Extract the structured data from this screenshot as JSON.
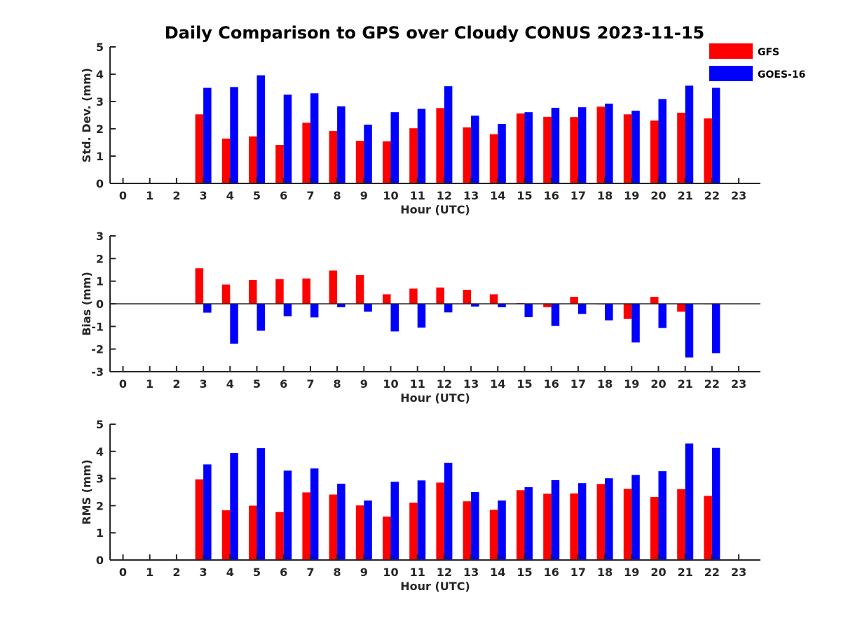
{
  "title": "Daily Comparison to GPS over Cloudy CONUS 2023-11-15",
  "legend": {
    "placement": "top-right",
    "items": [
      {
        "name": "GFS",
        "color": "#ff0000"
      },
      {
        "name": "GOES-16",
        "color": "#0000ff"
      }
    ]
  },
  "chart_data": [
    {
      "type": "bar",
      "xlabel": "Hour (UTC)",
      "ylabel": "Std. Dev. (mm)",
      "ylim": [
        0,
        5
      ],
      "yticks": [
        0,
        1,
        2,
        3,
        4,
        5
      ],
      "categories": [
        "0",
        "1",
        "2",
        "3",
        "4",
        "5",
        "6",
        "7",
        "8",
        "9",
        "10",
        "11",
        "12",
        "13",
        "14",
        "15",
        "16",
        "17",
        "18",
        "19",
        "20",
        "21",
        "22",
        "23"
      ],
      "grid": false,
      "series": [
        {
          "name": "GFS",
          "color": "#ff0000",
          "values": [
            null,
            null,
            null,
            2.53,
            1.64,
            1.72,
            1.41,
            2.22,
            1.92,
            1.56,
            1.54,
            2.02,
            2.76,
            2.05,
            1.8,
            2.56,
            2.44,
            2.43,
            2.81,
            2.53,
            2.3,
            2.59,
            2.38,
            null
          ]
        },
        {
          "name": "GOES-16",
          "color": "#0000ff",
          "values": [
            null,
            null,
            null,
            3.5,
            3.53,
            3.96,
            3.25,
            3.3,
            2.82,
            2.15,
            2.61,
            2.73,
            3.56,
            2.48,
            2.18,
            2.61,
            2.77,
            2.79,
            2.92,
            2.66,
            3.09,
            3.58,
            3.5,
            null
          ]
        }
      ]
    },
    {
      "type": "bar",
      "xlabel": "Hour (UTC)",
      "ylabel": "Bias (mm)",
      "ylim": [
        -3,
        3
      ],
      "yticks": [
        -3,
        -2,
        -1,
        0,
        1,
        2,
        3
      ],
      "categories": [
        "0",
        "1",
        "2",
        "3",
        "4",
        "5",
        "6",
        "7",
        "8",
        "9",
        "10",
        "11",
        "12",
        "13",
        "14",
        "15",
        "16",
        "17",
        "18",
        "19",
        "20",
        "21",
        "22",
        "23"
      ],
      "grid": false,
      "zero_line": true,
      "series": [
        {
          "name": "GFS",
          "color": "#ff0000",
          "values": [
            null,
            null,
            null,
            1.57,
            0.85,
            1.05,
            1.09,
            1.12,
            1.47,
            1.27,
            0.42,
            0.67,
            0.72,
            0.62,
            0.42,
            0.03,
            -0.15,
            0.31,
            -0.03,
            -0.67,
            0.31,
            -0.35,
            0.0,
            null
          ]
        },
        {
          "name": "GOES-16",
          "color": "#0000ff",
          "values": [
            null,
            null,
            null,
            -0.39,
            -1.76,
            -1.19,
            -0.55,
            -0.6,
            -0.15,
            -0.35,
            -1.22,
            -1.05,
            -0.38,
            -0.12,
            -0.15,
            -0.59,
            -0.98,
            -0.45,
            -0.73,
            -1.71,
            -1.07,
            -2.37,
            -2.18,
            null
          ]
        }
      ]
    },
    {
      "type": "bar",
      "xlabel": "Hour (UTC)",
      "ylabel": "RMS (mm)",
      "ylim": [
        0,
        5
      ],
      "yticks": [
        0,
        1,
        2,
        3,
        4,
        5
      ],
      "categories": [
        "0",
        "1",
        "2",
        "3",
        "4",
        "5",
        "6",
        "7",
        "8",
        "9",
        "10",
        "11",
        "12",
        "13",
        "14",
        "15",
        "16",
        "17",
        "18",
        "19",
        "20",
        "21",
        "22",
        "23"
      ],
      "grid": false,
      "series": [
        {
          "name": "GFS",
          "color": "#ff0000",
          "values": [
            null,
            null,
            null,
            2.97,
            1.83,
            2.0,
            1.77,
            2.49,
            2.41,
            2.01,
            1.6,
            2.11,
            2.85,
            2.16,
            1.85,
            2.57,
            2.44,
            2.45,
            2.8,
            2.62,
            2.32,
            2.61,
            2.36,
            null
          ]
        },
        {
          "name": "GOES-16",
          "color": "#0000ff",
          "values": [
            null,
            null,
            null,
            3.52,
            3.94,
            4.12,
            3.29,
            3.37,
            2.81,
            2.19,
            2.88,
            2.93,
            3.58,
            2.5,
            2.19,
            2.68,
            2.94,
            2.83,
            3.01,
            3.13,
            3.27,
            4.29,
            4.13,
            null
          ]
        }
      ]
    }
  ]
}
